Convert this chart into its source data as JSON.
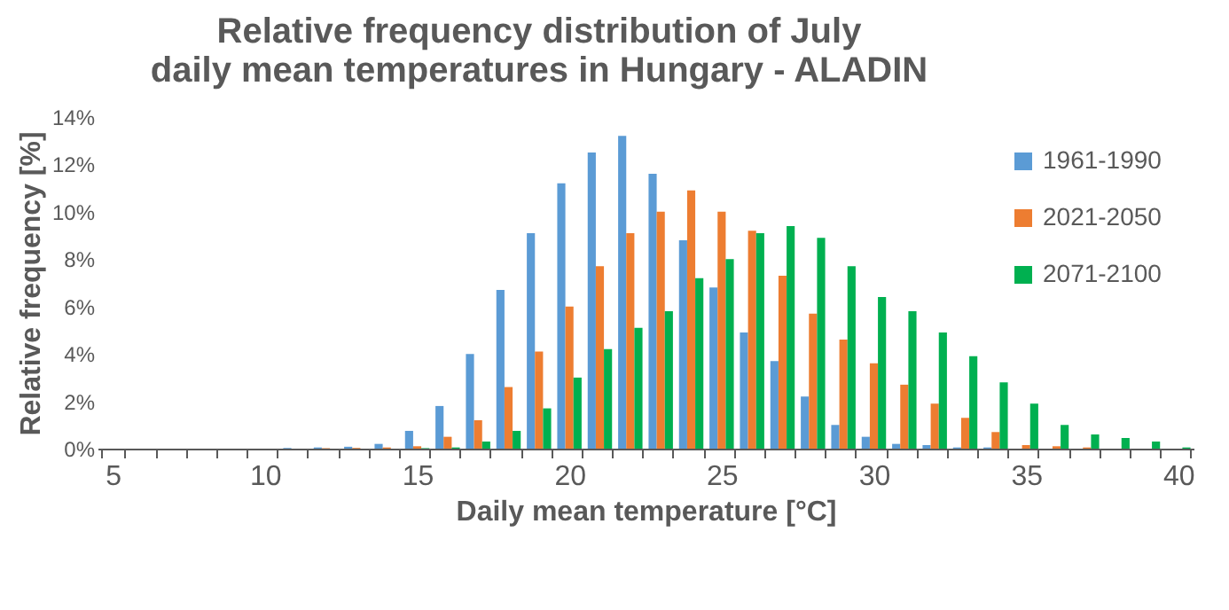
{
  "chart_data": {
    "type": "bar",
    "title": "Relative frequency distribution of July daily mean temperatures in Hungary - ALADIN",
    "xlabel": "Daily mean temperature [°C]",
    "ylabel": "Relative frequency [%]",
    "categories": [
      "5",
      null,
      null,
      null,
      null,
      "10",
      null,
      null,
      null,
      null,
      "15",
      null,
      null,
      null,
      null,
      "20",
      null,
      null,
      null,
      null,
      "25",
      null,
      null,
      null,
      null,
      "30",
      null,
      null,
      null,
      null,
      "35",
      null,
      null,
      null,
      null,
      "40"
    ],
    "series": [
      {
        "name": "1961-1990",
        "color": "#5b9bd5",
        "values": [
          0,
          0,
          0,
          0,
          0,
          0,
          0.03,
          0.05,
          0.08,
          0.2,
          0.75,
          1.8,
          4.0,
          6.7,
          9.1,
          11.2,
          12.5,
          13.2,
          11.6,
          8.8,
          6.8,
          4.9,
          3.7,
          2.2,
          1.0,
          0.5,
          0.2,
          0.15,
          0.05,
          0.05,
          0,
          0,
          0,
          0,
          0,
          0
        ]
      },
      {
        "name": "2021-2050",
        "color": "#ed7d31",
        "values": [
          0,
          0,
          0,
          0,
          0,
          0,
          0,
          0.02,
          0.03,
          0.05,
          0.1,
          0.5,
          1.2,
          2.6,
          4.1,
          6.0,
          7.7,
          9.1,
          10.0,
          10.9,
          10.0,
          9.2,
          7.3,
          5.7,
          4.6,
          3.6,
          2.7,
          1.9,
          1.3,
          0.7,
          0.15,
          0.1,
          0.05,
          0,
          0,
          0
        ]
      },
      {
        "name": "2071-2100",
        "color": "#00b050",
        "values": [
          0,
          0,
          0,
          0,
          0,
          0,
          0,
          0,
          0,
          0,
          0.02,
          0.05,
          0.3,
          0.75,
          1.7,
          3.0,
          4.2,
          5.1,
          5.8,
          7.2,
          8.0,
          9.1,
          9.4,
          8.9,
          7.7,
          6.4,
          5.8,
          4.9,
          3.9,
          2.8,
          1.9,
          1.0,
          0.6,
          0.45,
          0.3,
          0.05
        ]
      }
    ],
    "ylim": [
      0,
      14
    ],
    "yticks": [
      {
        "value": 0,
        "label": "0%"
      },
      {
        "value": 2,
        "label": "2%"
      },
      {
        "value": 4,
        "label": "4%"
      },
      {
        "value": 6,
        "label": "6%"
      },
      {
        "value": 8,
        "label": "8%"
      },
      {
        "value": 10,
        "label": "10%"
      },
      {
        "value": 12,
        "label": "12%"
      },
      {
        "value": 14,
        "label": "14%"
      }
    ],
    "grid": false,
    "legend": "top right"
  }
}
